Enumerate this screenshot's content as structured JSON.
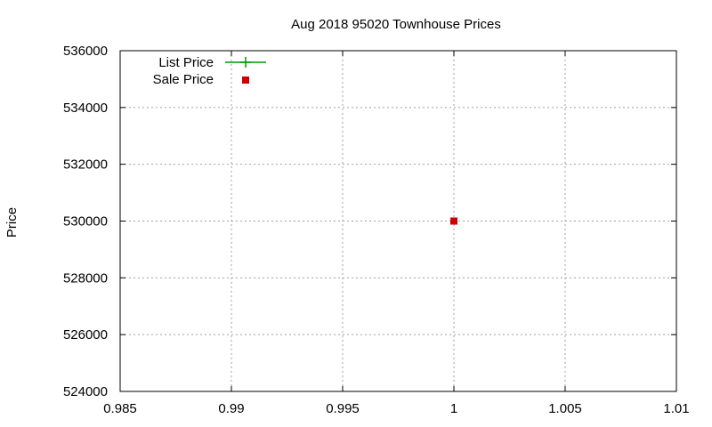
{
  "chart_data": {
    "type": "scatter",
    "title": "Aug 2018 95020 Townhouse Prices",
    "xlabel": "",
    "ylabel": "Price",
    "xlim": [
      0.985,
      1.01
    ],
    "ylim": [
      524000,
      536000
    ],
    "x_ticks": [
      0.985,
      0.99,
      0.995,
      1,
      1.005,
      1.01
    ],
    "x_tick_labels": [
      "0.985",
      "0.99",
      "0.995",
      "1",
      "1.005",
      "1.01"
    ],
    "y_ticks": [
      524000,
      526000,
      528000,
      530000,
      532000,
      534000,
      536000
    ],
    "y_tick_labels": [
      "524000",
      "526000",
      "528000",
      "530000",
      "532000",
      "534000",
      "536000"
    ],
    "grid": true,
    "legend_position": "top-left",
    "series": [
      {
        "name": "List Price",
        "style": "line-plus",
        "color": "#009900",
        "points": []
      },
      {
        "name": "Sale Price",
        "style": "square",
        "color": "#cc0000",
        "points": [
          {
            "x": 1,
            "y": 530000
          }
        ]
      }
    ]
  }
}
